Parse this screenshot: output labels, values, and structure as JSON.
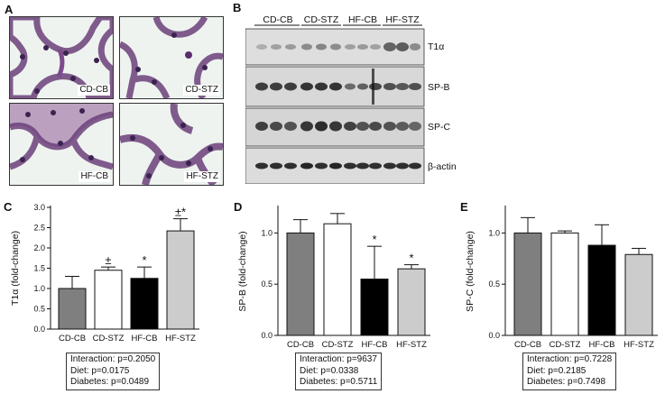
{
  "panels": {
    "a": "A",
    "b": "B",
    "c": "C",
    "d": "D",
    "e": "E"
  },
  "histology": [
    {
      "label": "CD-CB"
    },
    {
      "label": "CD-STZ"
    },
    {
      "label": "HF-CB"
    },
    {
      "label": "HF-STZ"
    }
  ],
  "blot": {
    "groups": [
      "CD-CB",
      "CD-STZ",
      "HF-CB",
      "HF-STZ"
    ],
    "bands": [
      "T1α",
      "SP-B",
      "SP-C",
      "β-actin"
    ]
  },
  "chart_data": [
    {
      "type": "bar",
      "panel": "C",
      "title": "",
      "xlabel": "",
      "ylabel": "T1α  (fold-change)",
      "categories": [
        "CD-CB",
        "CD-STZ",
        "HF-CB",
        "HF-STZ"
      ],
      "values": [
        1.0,
        1.45,
        1.25,
        2.42
      ],
      "errors": [
        0.3,
        0.08,
        0.28,
        0.3
      ],
      "annotations": [
        "",
        "±",
        "*",
        "±*"
      ],
      "bar_colors": [
        "#7f7f7f",
        "#ffffff",
        "#000000",
        "#cccccc"
      ],
      "ylim": [
        0,
        3.0
      ],
      "yticks": [
        "0.0",
        "0.5",
        "1.0",
        "1.5",
        "2.0",
        "2.5",
        "3.0"
      ],
      "stats": [
        "Interaction: p=0.2050",
        "Diet: p=0.0175",
        "Diabetes: p=0.0489"
      ]
    },
    {
      "type": "bar",
      "panel": "D",
      "title": "",
      "xlabel": "",
      "ylabel": "SP-B  (fold-change)",
      "categories": [
        "CD-CB",
        "CD-STZ",
        "HF-CB",
        "HF-STZ"
      ],
      "values": [
        1.0,
        1.09,
        0.55,
        0.65
      ],
      "errors": [
        0.13,
        0.1,
        0.32,
        0.04
      ],
      "annotations": [
        "",
        "",
        "*",
        "*"
      ],
      "bar_colors": [
        "#7f7f7f",
        "#ffffff",
        "#000000",
        "#cccccc"
      ],
      "ylim": [
        0,
        1.25
      ],
      "yticks": [
        "0.0",
        "0.5",
        "1.0"
      ],
      "stats": [
        "Interaction: p=9637",
        "Diet: p=0.0338",
        "Diabetes: p=0.5711"
      ]
    },
    {
      "type": "bar",
      "panel": "E",
      "title": "",
      "xlabel": "",
      "ylabel": "SP-C  (fold-change)",
      "categories": [
        "CD-CB",
        "CD-STZ",
        "HF-CB",
        "HF-STZ"
      ],
      "values": [
        1.0,
        1.0,
        0.88,
        0.79
      ],
      "errors": [
        0.15,
        0.02,
        0.2,
        0.06
      ],
      "annotations": [
        "",
        "",
        "",
        ""
      ],
      "bar_colors": [
        "#7f7f7f",
        "#ffffff",
        "#000000",
        "#cccccc"
      ],
      "ylim": [
        0,
        1.25
      ],
      "yticks": [
        "0.0",
        "0.5",
        "1.0"
      ],
      "stats": [
        "Interaction: p=0.7228",
        "Diet: p=0.2185",
        "Diabetes: p=0.7498"
      ]
    }
  ]
}
